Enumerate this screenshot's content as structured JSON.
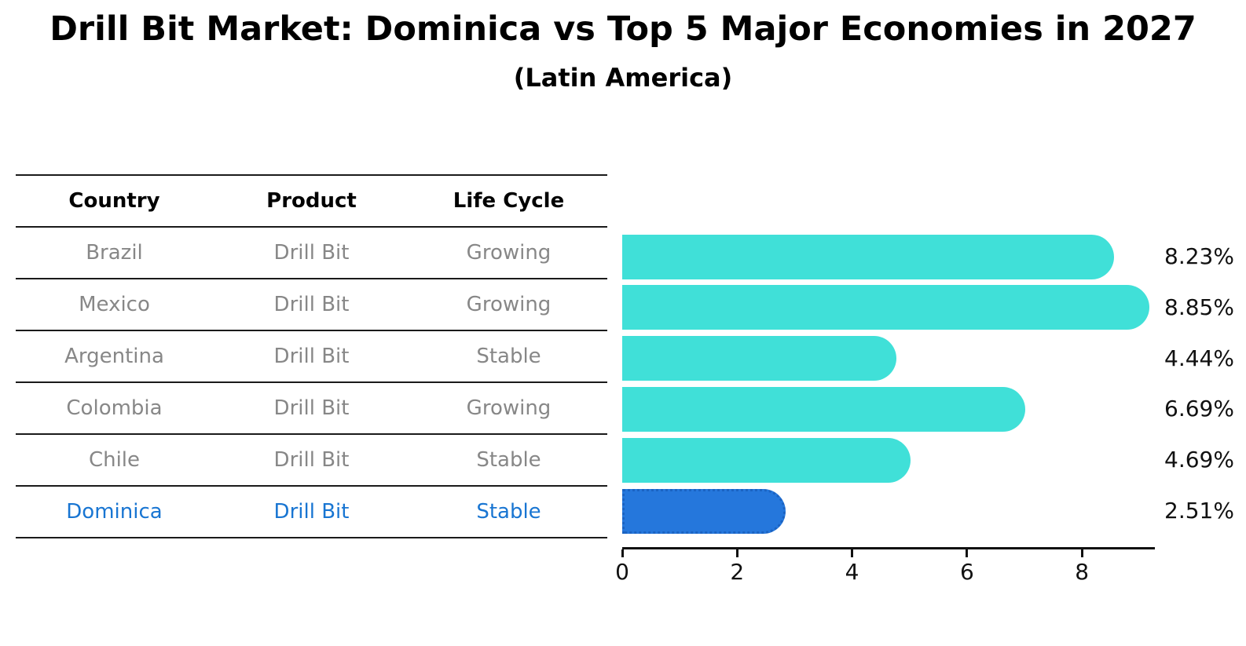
{
  "title": "Drill Bit Market: Dominica vs Top 5 Major Economies in 2027",
  "subtitle": "(Latin America)",
  "table": {
    "headers": [
      "Country",
      "Product",
      "Life Cycle"
    ],
    "rows": [
      {
        "country": "Brazil",
        "product": "Drill Bit",
        "life_cycle": "Growing",
        "highlight": false
      },
      {
        "country": "Mexico",
        "product": "Drill Bit",
        "life_cycle": "Growing",
        "highlight": false
      },
      {
        "country": "Argentina",
        "product": "Drill Bit",
        "life_cycle": "Stable",
        "highlight": false
      },
      {
        "country": "Colombia",
        "product": "Drill Bit",
        "life_cycle": "Growing",
        "highlight": false
      },
      {
        "country": "Chile",
        "product": "Drill Bit",
        "life_cycle": "Stable",
        "highlight": false
      },
      {
        "country": "Dominica",
        "product": "Drill Bit",
        "life_cycle": "Stable",
        "highlight": true
      }
    ]
  },
  "chart_data": {
    "type": "bar",
    "orientation": "horizontal",
    "title": "Drill Bit Market: Dominica vs Top 5 Major Economies in 2027",
    "subtitle": "(Latin America)",
    "categories": [
      "Brazil",
      "Mexico",
      "Argentina",
      "Colombia",
      "Chile",
      "Dominica"
    ],
    "values": [
      8.23,
      8.85,
      4.44,
      6.69,
      4.69,
      2.51
    ],
    "value_labels": [
      "8.23%",
      "8.85%",
      "4.44%",
      "6.69%",
      "4.69%",
      "2.51%"
    ],
    "x_ticks": [
      "0",
      "2",
      "4",
      "6",
      "8"
    ],
    "x_tick_values": [
      0,
      2,
      4,
      6,
      8
    ],
    "xlim": [
      0,
      9.27
    ],
    "grid": false,
    "legend": false,
    "highlight_index": 5,
    "highlight_style": "dotted-border"
  },
  "colors": {
    "bar": "#40e0d8",
    "highlight_bar": "#2577dc",
    "highlight_text": "#1875d2",
    "row_text": "#878787",
    "header_text": "#000000",
    "axis": "#111111"
  }
}
